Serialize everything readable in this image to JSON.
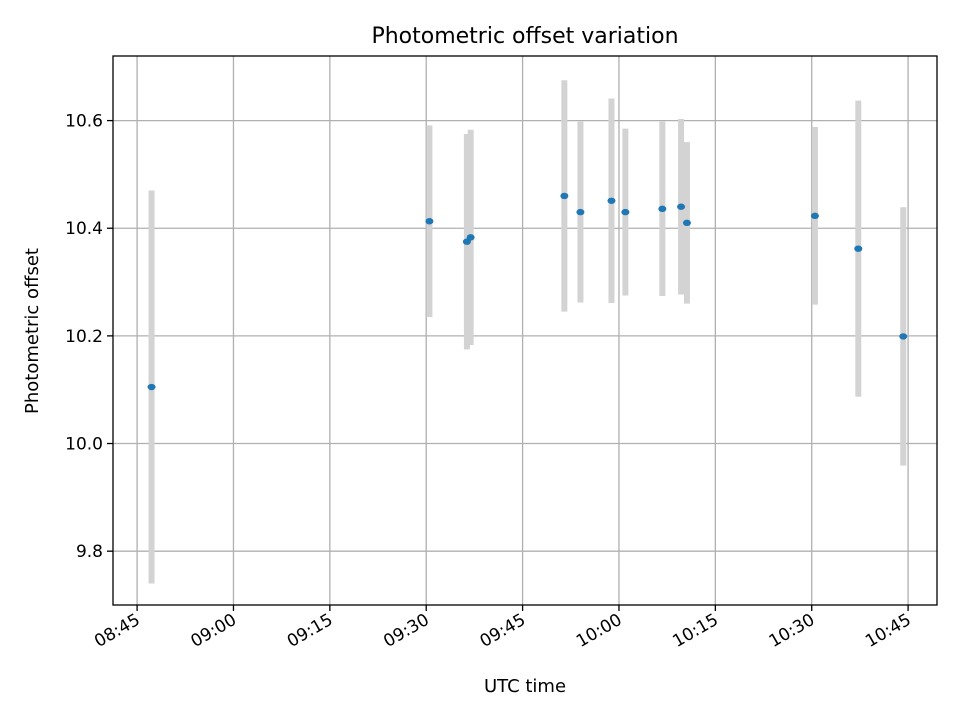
{
  "chart_data": {
    "type": "scatter",
    "title": "Photometric offset variation",
    "xlabel": "UTC time",
    "ylabel": "Photometric offset",
    "grid": true,
    "x_ticks": [
      "08:45",
      "09:00",
      "09:15",
      "09:30",
      "09:45",
      "10:00",
      "10:15",
      "10:30",
      "10:45"
    ],
    "y_ticks": [
      "9.8",
      "10.0",
      "10.2",
      "10.4",
      "10.6"
    ],
    "xlim": [
      "08:41:15",
      "10:49:30"
    ],
    "ylim": [
      9.7,
      10.72
    ],
    "series": [
      {
        "points": [
          {
            "x": "08:47:15",
            "y": 10.105,
            "err": 0.365
          },
          {
            "x": "09:30:30",
            "y": 10.413,
            "err": 0.178
          },
          {
            "x": "09:36:20",
            "y": 10.375,
            "err": 0.2
          },
          {
            "x": "09:36:55",
            "y": 10.383,
            "err": 0.2
          },
          {
            "x": "09:51:30",
            "y": 10.46,
            "err": 0.215
          },
          {
            "x": "09:54:00",
            "y": 10.43,
            "err": 0.168
          },
          {
            "x": "09:58:50",
            "y": 10.451,
            "err": 0.19
          },
          {
            "x": "10:01:00",
            "y": 10.43,
            "err": 0.155
          },
          {
            "x": "10:06:45",
            "y": 10.436,
            "err": 0.162
          },
          {
            "x": "10:09:40",
            "y": 10.44,
            "err": 0.163
          },
          {
            "x": "10:10:35",
            "y": 10.41,
            "err": 0.15
          },
          {
            "x": "10:30:30",
            "y": 10.423,
            "err": 0.165
          },
          {
            "x": "10:37:15",
            "y": 10.362,
            "err": 0.275
          },
          {
            "x": "10:44:15",
            "y": 10.199,
            "err": 0.24
          }
        ]
      }
    ],
    "colors": {
      "marker": "#1f77b4",
      "errorbar": "#d3d3d3",
      "grid": "#b0b0b0"
    }
  }
}
